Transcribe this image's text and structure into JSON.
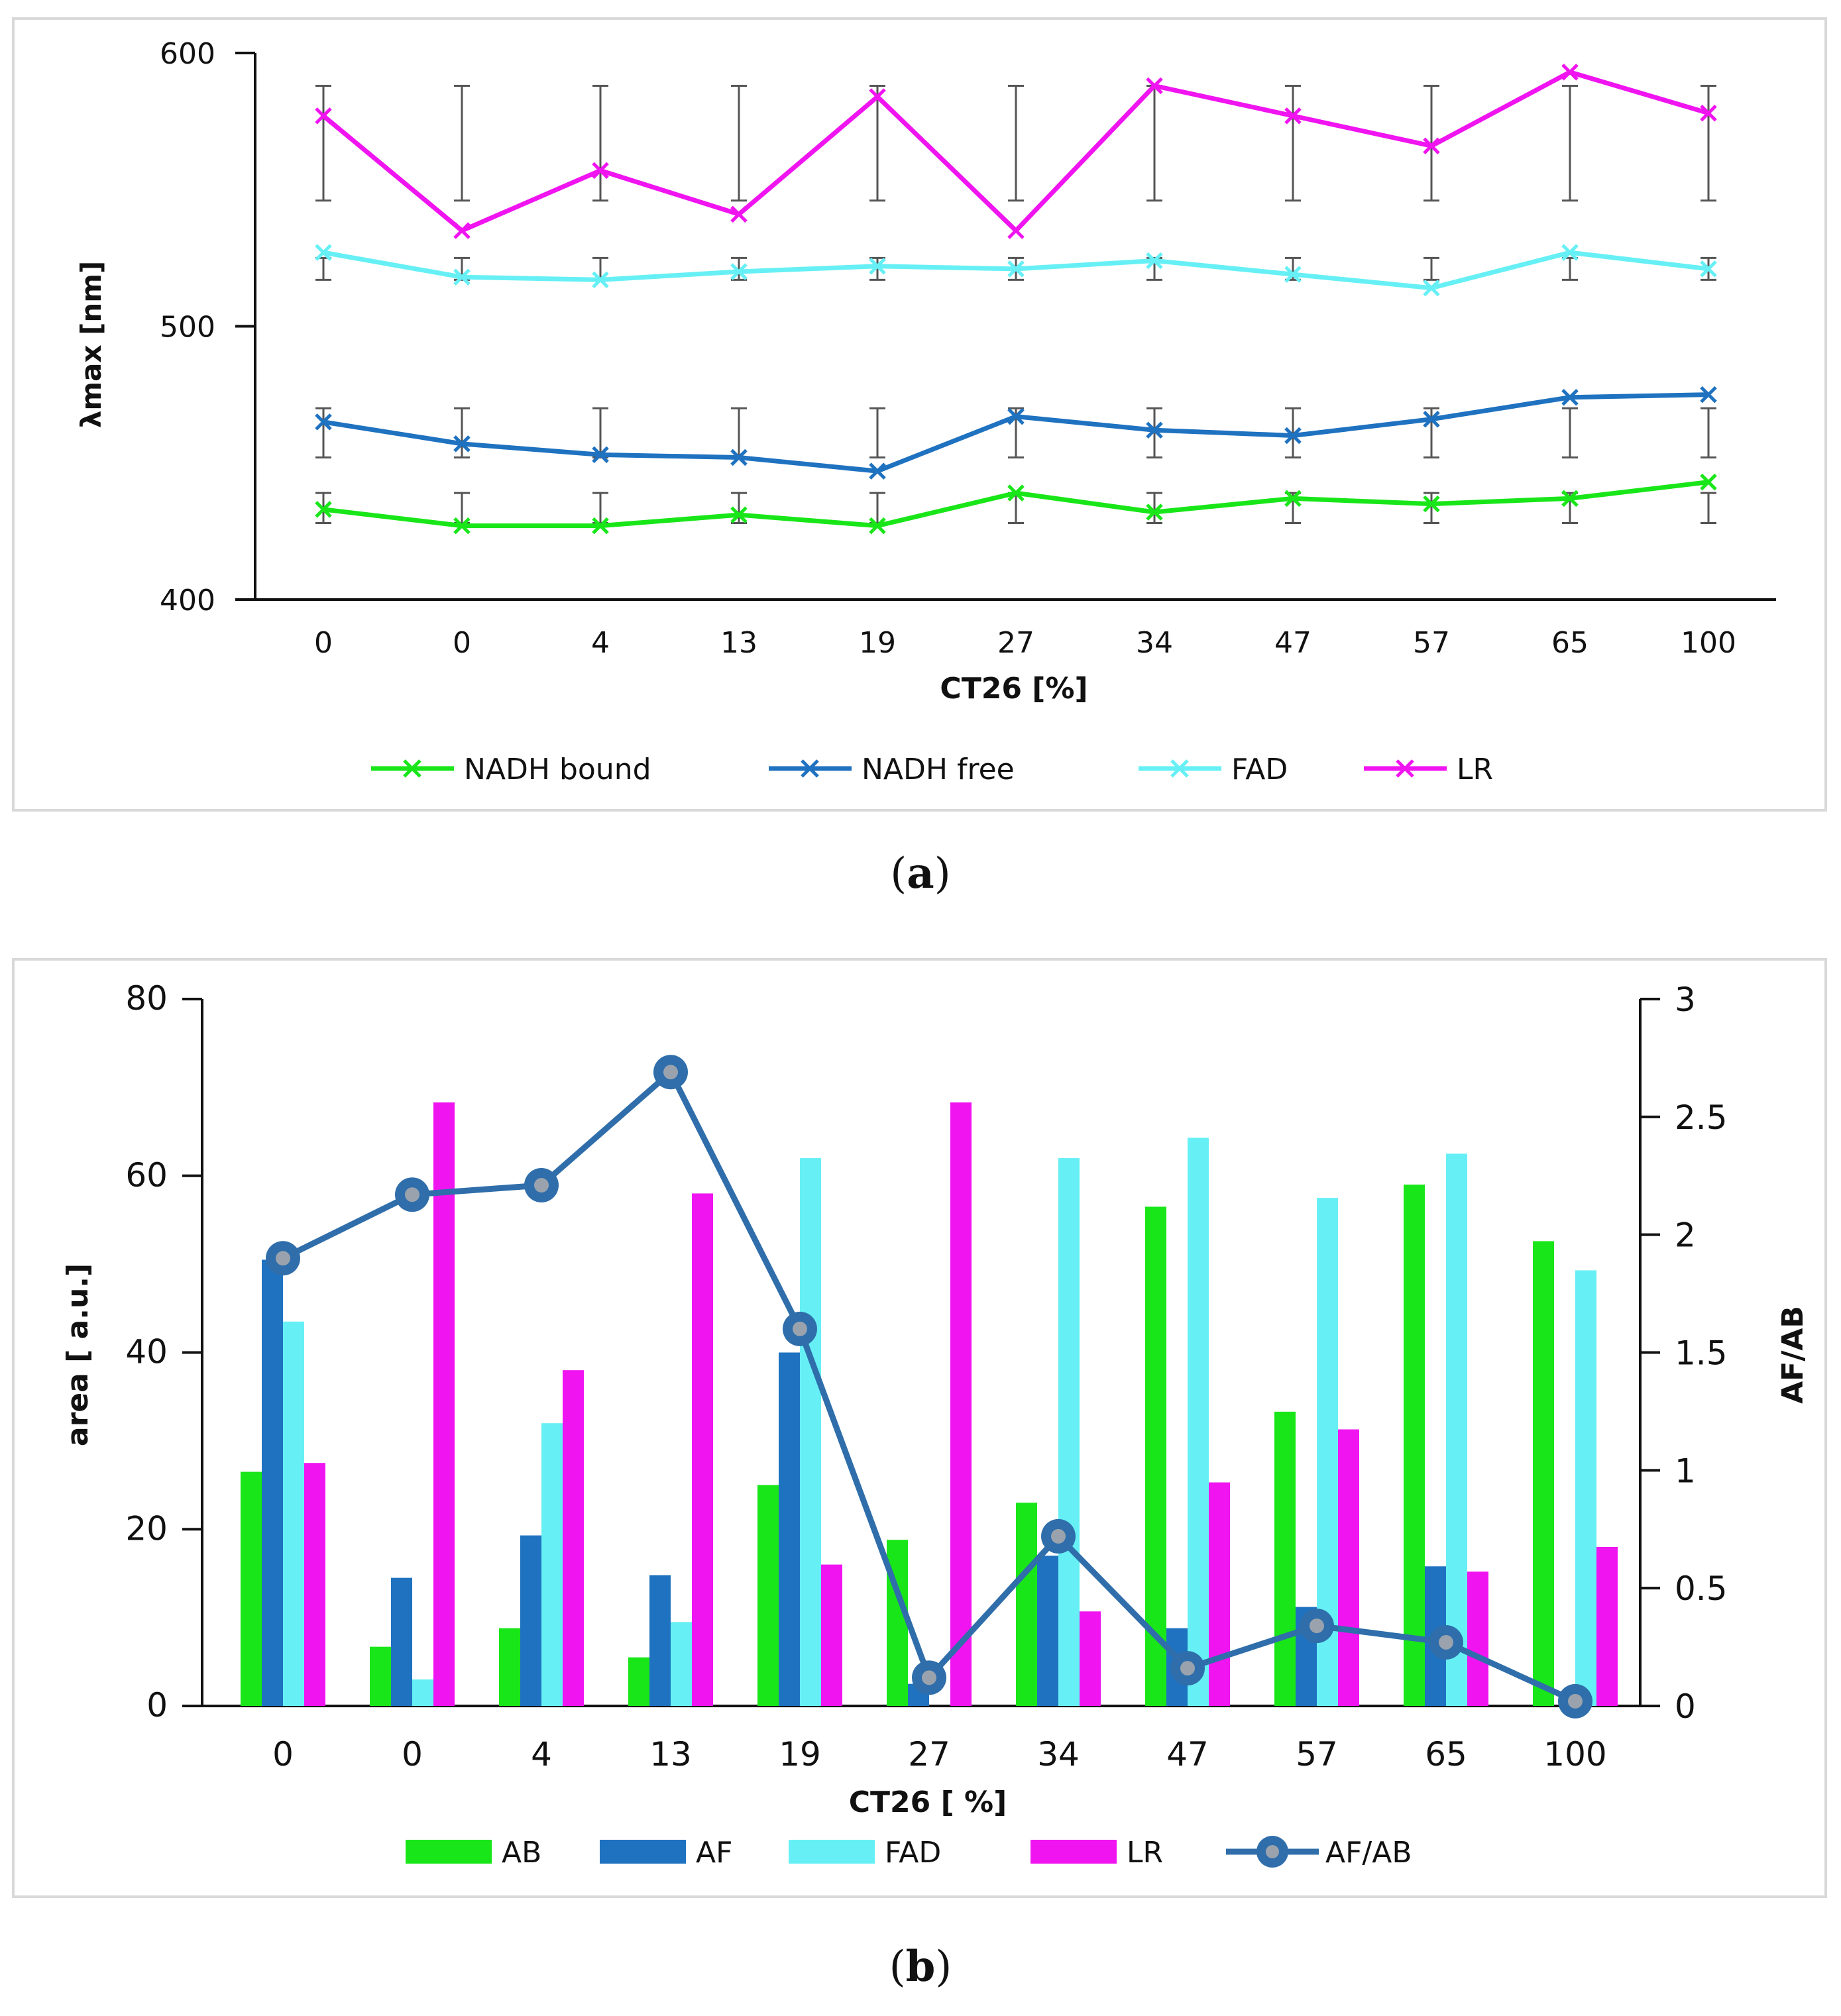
{
  "chart_data": [
    {
      "type": "line",
      "panel_label": "a",
      "xlabel": "CT26 [%]",
      "ylabel": "λmax [nm]",
      "categories": [
        "0",
        "0",
        "4",
        "13",
        "19",
        "27",
        "34",
        "47",
        "57",
        "65",
        "100"
      ],
      "ylim": [
        400,
        600
      ],
      "yticks": [
        "400",
        "500",
        "600"
      ],
      "series": [
        {
          "name": "NADH bound",
          "color": "#19e619",
          "values": [
            433,
            427,
            427,
            431,
            427,
            439,
            432,
            437,
            435,
            437,
            443
          ],
          "error_low": [
            428,
            428,
            428,
            428,
            428,
            428,
            428,
            428,
            428,
            428,
            428
          ],
          "error_high": [
            439,
            439,
            439,
            439,
            439,
            439,
            439,
            439,
            439,
            439,
            439
          ]
        },
        {
          "name": "NADH free",
          "color": "#1f72c0",
          "values": [
            465,
            457,
            453,
            452,
            447,
            467,
            462,
            460,
            466,
            474,
            475
          ],
          "error_low": [
            452,
            452,
            452,
            452,
            452,
            452,
            452,
            452,
            452,
            452,
            452
          ],
          "error_high": [
            470,
            470,
            470,
            470,
            470,
            470,
            470,
            470,
            470,
            470,
            470
          ]
        },
        {
          "name": "FAD",
          "color": "#66f0f5",
          "values": [
            527,
            518,
            517,
            520,
            522,
            521,
            524,
            519,
            514,
            527,
            521
          ],
          "error_low": [
            517,
            517,
            517,
            517,
            517,
            517,
            517,
            517,
            517,
            517,
            517
          ],
          "error_high": [
            525,
            525,
            525,
            525,
            525,
            525,
            525,
            525,
            525,
            525,
            525
          ]
        },
        {
          "name": "LR",
          "color": "#f014f0",
          "values": [
            577,
            535,
            557,
            541,
            584,
            535,
            588,
            577,
            566,
            593,
            578
          ],
          "error_low": [
            546,
            546,
            546,
            546,
            546,
            546,
            546,
            546,
            546,
            546,
            546
          ],
          "error_high": [
            588,
            588,
            588,
            588,
            588,
            588,
            588,
            588,
            588,
            588,
            588
          ]
        }
      ]
    },
    {
      "type": "bar",
      "panel_label": "b",
      "xlabel": "CT26 [ %]",
      "ylabel": "area [ a.u.]",
      "y2label": "AF/AB",
      "categories": [
        "0",
        "0",
        "4",
        "13",
        "19",
        "27",
        "34",
        "47",
        "57",
        "65",
        "100"
      ],
      "ylim": [
        0,
        80
      ],
      "yticks": [
        "0",
        "20",
        "40",
        "60",
        "80"
      ],
      "y2lim": [
        0,
        3
      ],
      "y2ticks": [
        "0",
        "0.5",
        "1",
        "1.5",
        "2",
        "2.5",
        "3"
      ],
      "series": [
        {
          "name": "AB",
          "color": "#19e619",
          "values": [
            26.5,
            6.7,
            8.8,
            5.5,
            25.0,
            18.8,
            23.0,
            56.5,
            33.3,
            59.0,
            52.6
          ]
        },
        {
          "name": "AF",
          "color": "#1f72c0",
          "values": [
            50.5,
            14.5,
            19.3,
            14.8,
            40.0,
            2.5,
            17.0,
            8.8,
            11.2,
            15.8,
            0
          ]
        },
        {
          "name": "FAD",
          "color": "#66f0f5",
          "values": [
            43.5,
            3.0,
            32.0,
            9.5,
            62.0,
            0,
            62.0,
            64.3,
            57.5,
            62.5,
            49.3
          ]
        },
        {
          "name": "LR",
          "color": "#f014f0",
          "values": [
            27.5,
            68.3,
            38.0,
            58.0,
            16.0,
            68.3,
            10.7,
            25.3,
            31.3,
            15.2,
            18.0
          ]
        }
      ],
      "line_series": {
        "name": "AF/AB",
        "color": "#2f6eaa",
        "axis": "right",
        "values": [
          1.9,
          2.17,
          2.21,
          2.69,
          1.6,
          0.12,
          0.72,
          0.16,
          0.34,
          0.27,
          0.02
        ]
      }
    }
  ],
  "captions": {
    "a": "a",
    "b": "b"
  }
}
